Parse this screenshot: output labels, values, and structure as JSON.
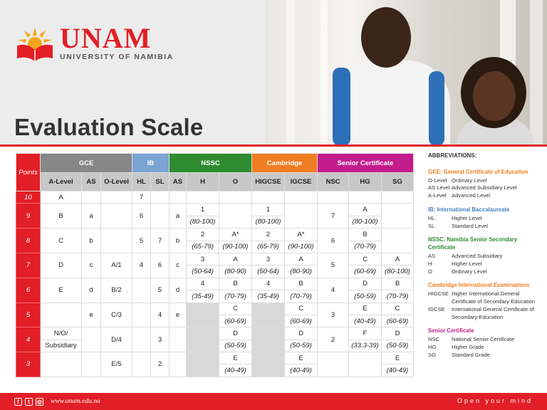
{
  "brand": {
    "name": "UNAM",
    "subtitle": "UNIVERSITY OF NAMIBIA"
  },
  "title": "Evaluation Scale",
  "colors": {
    "red": "#e21e26",
    "gce": "#878787",
    "ib": "#7ba3d3",
    "nssc": "#2e8b2f",
    "cambridge": "#ef7d22",
    "senior": "#c21d8a"
  },
  "table": {
    "points_label": "Points",
    "groups": [
      {
        "label": "GCE",
        "cls": "gce",
        "span": 3
      },
      {
        "label": "IB",
        "cls": "ib",
        "span": 2
      },
      {
        "label": "NSSC",
        "cls": "nssc",
        "span": 3
      },
      {
        "label": "Cambridge",
        "cls": "camb",
        "span": 2
      },
      {
        "label": "Senior Certificate",
        "cls": "senior",
        "span": 3
      }
    ],
    "subheaders": [
      "A-Level",
      "AS",
      "O-Level",
      "HL",
      "SL",
      "AS",
      "H",
      "O",
      "HIGCSE",
      "IGCSE",
      "NSC",
      "HG",
      "SG"
    ],
    "rows": [
      {
        "point": "10",
        "cells": [
          [
            "A"
          ],
          [
            ""
          ],
          [
            ""
          ],
          [
            "7"
          ],
          [
            ""
          ],
          [
            ""
          ],
          [
            ""
          ],
          [
            ""
          ],
          [
            ""
          ],
          [
            ""
          ],
          [
            ""
          ],
          [
            ""
          ],
          [
            ""
          ]
        ]
      },
      {
        "point": "9",
        "cells": [
          [
            "B"
          ],
          [
            "a"
          ],
          [
            ""
          ],
          [
            "6"
          ],
          [
            ""
          ],
          [
            "a"
          ],
          [
            "1",
            "(80-100)"
          ],
          [
            ""
          ],
          [
            "1",
            "(80-100)"
          ],
          [
            ""
          ],
          [
            "7"
          ],
          [
            "A",
            "(80-100)"
          ],
          [
            ""
          ]
        ]
      },
      {
        "point": "8",
        "cells": [
          [
            "C"
          ],
          [
            "b"
          ],
          [
            ""
          ],
          [
            "5"
          ],
          [
            "7"
          ],
          [
            "b"
          ],
          [
            "2",
            "(65-79)"
          ],
          [
            "A*",
            "(90-100)"
          ],
          [
            "2",
            "(65-79)"
          ],
          [
            "A*",
            "(90-100)"
          ],
          [
            "6"
          ],
          [
            "B",
            "(70-79)"
          ],
          [
            ""
          ]
        ]
      },
      {
        "point": "7",
        "cells": [
          [
            "D"
          ],
          [
            "c"
          ],
          [
            "A/1"
          ],
          [
            "4"
          ],
          [
            "6"
          ],
          [
            "c"
          ],
          [
            "3",
            "(50-64)"
          ],
          [
            "A",
            "(80-90)"
          ],
          [
            "3",
            "(50-64)"
          ],
          [
            "A",
            "(80-90)"
          ],
          [
            "5"
          ],
          [
            "C",
            "(60-69)"
          ],
          [
            "A",
            "(80-100)"
          ]
        ]
      },
      {
        "point": "6",
        "cells": [
          [
            "E"
          ],
          [
            "d"
          ],
          [
            "B/2"
          ],
          [
            ""
          ],
          [
            "5"
          ],
          [
            "d"
          ],
          [
            "4",
            "(35-49)"
          ],
          [
            "B",
            "(70-79)"
          ],
          [
            "4",
            "(35-49)"
          ],
          [
            "B",
            "(70-79)"
          ],
          [
            "4"
          ],
          [
            "D",
            "(50-59)"
          ],
          [
            "B",
            "(70-79)"
          ]
        ]
      },
      {
        "point": "5",
        "cells": [
          [
            ""
          ],
          [
            "e"
          ],
          [
            "C/3"
          ],
          [
            ""
          ],
          [
            "4"
          ],
          [
            "e"
          ],
          [
            ""
          ],
          [
            "C",
            "(60-69)"
          ],
          [
            ""
          ],
          [
            "C",
            "(60-69)"
          ],
          [
            "3"
          ],
          [
            "E",
            "(40-49)"
          ],
          [
            "C",
            "(60-69)"
          ]
        ]
      },
      {
        "point": "4",
        "cells": [
          [
            "N/O/",
            "Subsidiary"
          ],
          [
            ""
          ],
          [
            "D/4"
          ],
          [
            ""
          ],
          [
            "3"
          ],
          [
            ""
          ],
          [
            ""
          ],
          [
            "D",
            "(50-59)"
          ],
          [
            ""
          ],
          [
            "D",
            "(50-59)"
          ],
          [
            "2"
          ],
          [
            "F",
            "(33.3-39)"
          ],
          [
            "D",
            "(50-59)"
          ]
        ]
      },
      {
        "point": "3",
        "cells": [
          [
            ""
          ],
          [
            ""
          ],
          [
            "E/5"
          ],
          [
            ""
          ],
          [
            "2"
          ],
          [
            ""
          ],
          [
            ""
          ],
          [
            "E",
            "(40-49)"
          ],
          [
            ""
          ],
          [
            "E",
            "(40-49)"
          ],
          [
            ""
          ],
          [
            ""
          ],
          [
            "E",
            "(40-49)"
          ]
        ]
      }
    ]
  },
  "abbreviations": {
    "title": "ABBREVIATIONS:",
    "sections": [
      {
        "heading": "GCE: General Certificate of Education",
        "color": "#ef7d22",
        "items": [
          {
            "k": "O-Level",
            "v": "Ordinary Level"
          },
          {
            "k": "AS Level",
            "v": "Advanced Subsidiary Level"
          },
          {
            "k": "A-Level",
            "v": "Advanced Level"
          }
        ]
      },
      {
        "heading": "IB: International Baccalaureate",
        "color": "#4a7fc1",
        "items": [
          {
            "k": "HL",
            "v": "Higher Level"
          },
          {
            "k": "SL",
            "v": "Standard Level"
          }
        ]
      },
      {
        "heading": "NSSC: Namibia Senior Secondary Certificate",
        "color": "#2e8b2f",
        "items": [
          {
            "k": "AS",
            "v": "Advanced Subsidiary"
          },
          {
            "k": "H",
            "v": "Higher Level"
          },
          {
            "k": "O",
            "v": "Ordinary Level"
          }
        ]
      },
      {
        "heading": "Cambridge International Examinations",
        "color": "#ef7d22",
        "items": [
          {
            "k": "HIGCSE",
            "v": "Higher International General Certificate of Secondary Education"
          },
          {
            "k": "IGCSE",
            "v": "International General Certificate of Secondary Education"
          }
        ]
      },
      {
        "heading": "Senior Certificate",
        "color": "#c21d8a",
        "items": [
          {
            "k": "NSC",
            "v": "National Senior Certificate"
          },
          {
            "k": "HG",
            "v": "Higher Grade"
          },
          {
            "k": "SG",
            "v": "Standard Grade"
          }
        ]
      }
    ]
  },
  "footer": {
    "website": "www.unam.edu.na",
    "tagline": "Open your mind",
    "social_icons": [
      "facebook-icon",
      "twitter-icon",
      "instagram-icon"
    ]
  }
}
